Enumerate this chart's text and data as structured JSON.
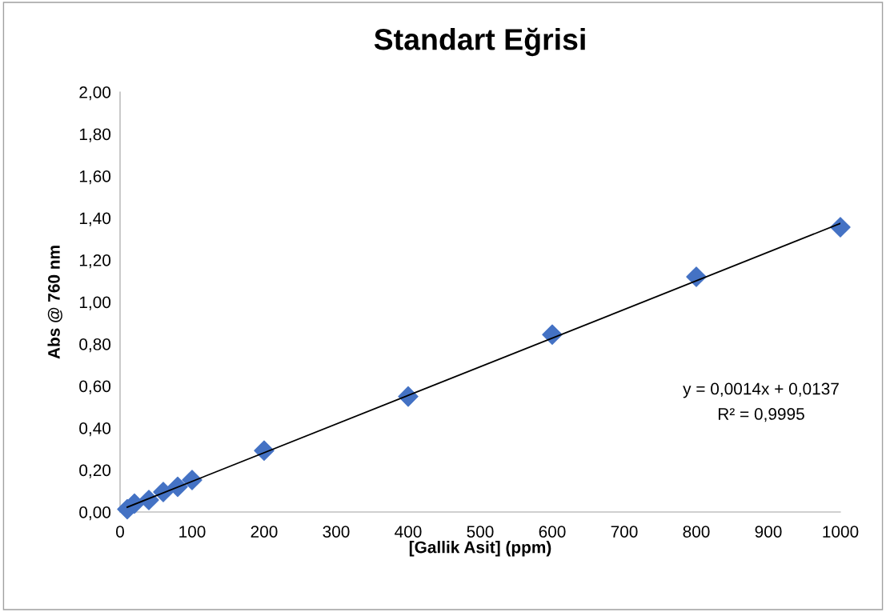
{
  "chart_data": {
    "type": "scatter",
    "title": "Standart Eğrisi",
    "xlabel": "[Gallik Asit] (ppm)",
    "ylabel": "Abs @ 760 nm",
    "x": [
      10,
      20,
      40,
      60,
      80,
      100,
      200,
      400,
      600,
      800,
      1000
    ],
    "series": [
      {
        "color": "#4472c4",
        "marker": "diamond",
        "values": [
          0.013,
          0.04,
          0.057,
          0.095,
          0.12,
          0.152,
          0.292,
          0.55,
          0.845,
          1.12,
          1.356
        ]
      },
      {
        "type": "line",
        "color": "#000000",
        "x": [
          10,
          1000
        ],
        "values": [
          0.023,
          1.374
        ]
      }
    ],
    "annotations": [
      "y = 0,0014x + 0,0137\nR² = 0,9995"
    ],
    "xlim": [
      0,
      1000
    ],
    "xticks": [
      0,
      100,
      200,
      300,
      400,
      500,
      600,
      700,
      800,
      900,
      1000
    ],
    "ylim": [
      0,
      2
    ],
    "yticks": [
      {
        "value": 0,
        "label": "0,00"
      },
      {
        "value": 0.2,
        "label": "0,20"
      },
      {
        "value": 0.4,
        "label": "0,40"
      },
      {
        "value": 0.6,
        "label": "0,60"
      },
      {
        "value": 0.8,
        "label": "0,80"
      },
      {
        "value": 1.0,
        "label": "1,00"
      },
      {
        "value": 1.2,
        "label": "1,20"
      },
      {
        "value": 1.4,
        "label": "1,40"
      },
      {
        "value": 1.6,
        "label": "1,60"
      },
      {
        "value": 1.8,
        "label": "1,80"
      },
      {
        "value": 2.0,
        "label": "2,00"
      }
    ],
    "grid": false,
    "legend": false
  }
}
